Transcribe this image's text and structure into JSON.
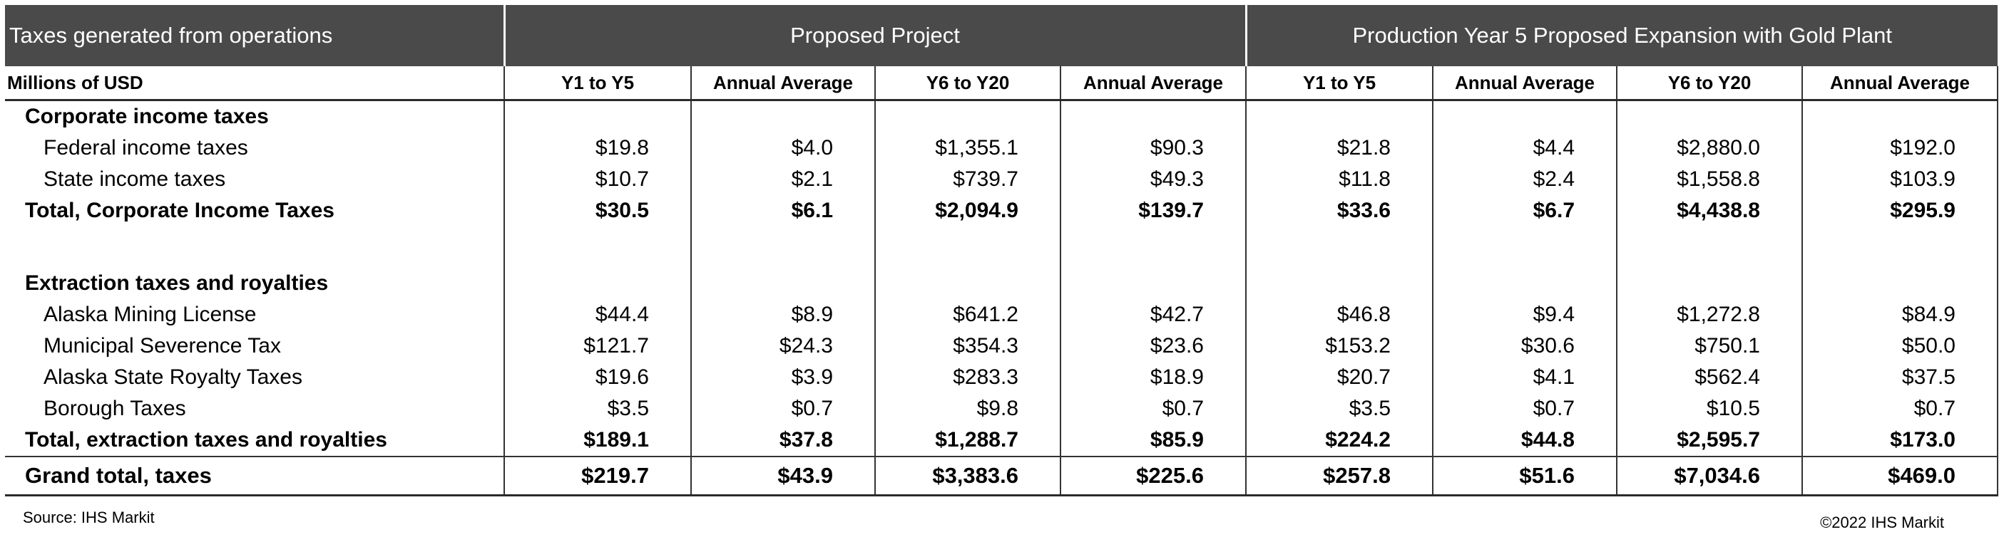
{
  "header": {
    "title": "Taxes generated from operations",
    "group1": "Proposed Project",
    "group2": "Production Year 5 Proposed Expansion with Gold Plant"
  },
  "subheader": {
    "units": "Millions of USD",
    "columns": [
      "Y1 to Y5",
      "Annual Average",
      "Y6 to Y20",
      "Annual Average",
      "Y1 to Y5",
      "Annual Average",
      "Y6 to Y20",
      "Annual Average"
    ]
  },
  "sections": {
    "corporate": {
      "label": "Corporate income taxes",
      "rows": [
        {
          "label": "Federal income taxes",
          "values": [
            "$19.8",
            "$4.0",
            "$1,355.1",
            "$90.3",
            "$21.8",
            "$4.4",
            "$2,880.0",
            "$192.0"
          ]
        },
        {
          "label": "State income taxes",
          "values": [
            "$10.7",
            "$2.1",
            "$739.7",
            "$49.3",
            "$11.8",
            "$2.4",
            "$1,558.8",
            "$103.9"
          ]
        }
      ],
      "total": {
        "label": "Total, Corporate Income Taxes",
        "values": [
          "$30.5",
          "$6.1",
          "$2,094.9",
          "$139.7",
          "$33.6",
          "$6.7",
          "$4,438.8",
          "$295.9"
        ]
      }
    },
    "extraction": {
      "label": "Extraction taxes and royalties",
      "rows": [
        {
          "label": "Alaska Mining License",
          "values": [
            "$44.4",
            "$8.9",
            "$641.2",
            "$42.7",
            "$46.8",
            "$9.4",
            "$1,272.8",
            "$84.9"
          ]
        },
        {
          "label": "Municipal Severence Tax",
          "values": [
            "$121.7",
            "$24.3",
            "$354.3",
            "$23.6",
            "$153.2",
            "$30.6",
            "$750.1",
            "$50.0"
          ]
        },
        {
          "label": "Alaska State Royalty Taxes",
          "values": [
            "$19.6",
            "$3.9",
            "$283.3",
            "$18.9",
            "$20.7",
            "$4.1",
            "$562.4",
            "$37.5"
          ]
        },
        {
          "label": "Borough Taxes",
          "values": [
            "$3.5",
            "$0.7",
            "$9.8",
            "$0.7",
            "$3.5",
            "$0.7",
            "$10.5",
            "$0.7"
          ]
        }
      ],
      "total": {
        "label": "Total, extraction taxes and royalties",
        "values": [
          "$189.1",
          "$37.8",
          "$1,288.7",
          "$85.9",
          "$224.2",
          "$44.8",
          "$2,595.7",
          "$173.0"
        ]
      }
    }
  },
  "grand_total": {
    "label": "Grand total, taxes",
    "values": [
      "$219.7",
      "$43.9",
      "$3,383.6",
      "$225.6",
      "$257.8",
      "$51.6",
      "$7,034.6",
      "$469.0"
    ]
  },
  "footer": {
    "source": "Source: IHS Markit",
    "copyright": "©2022 IHS Markit"
  }
}
